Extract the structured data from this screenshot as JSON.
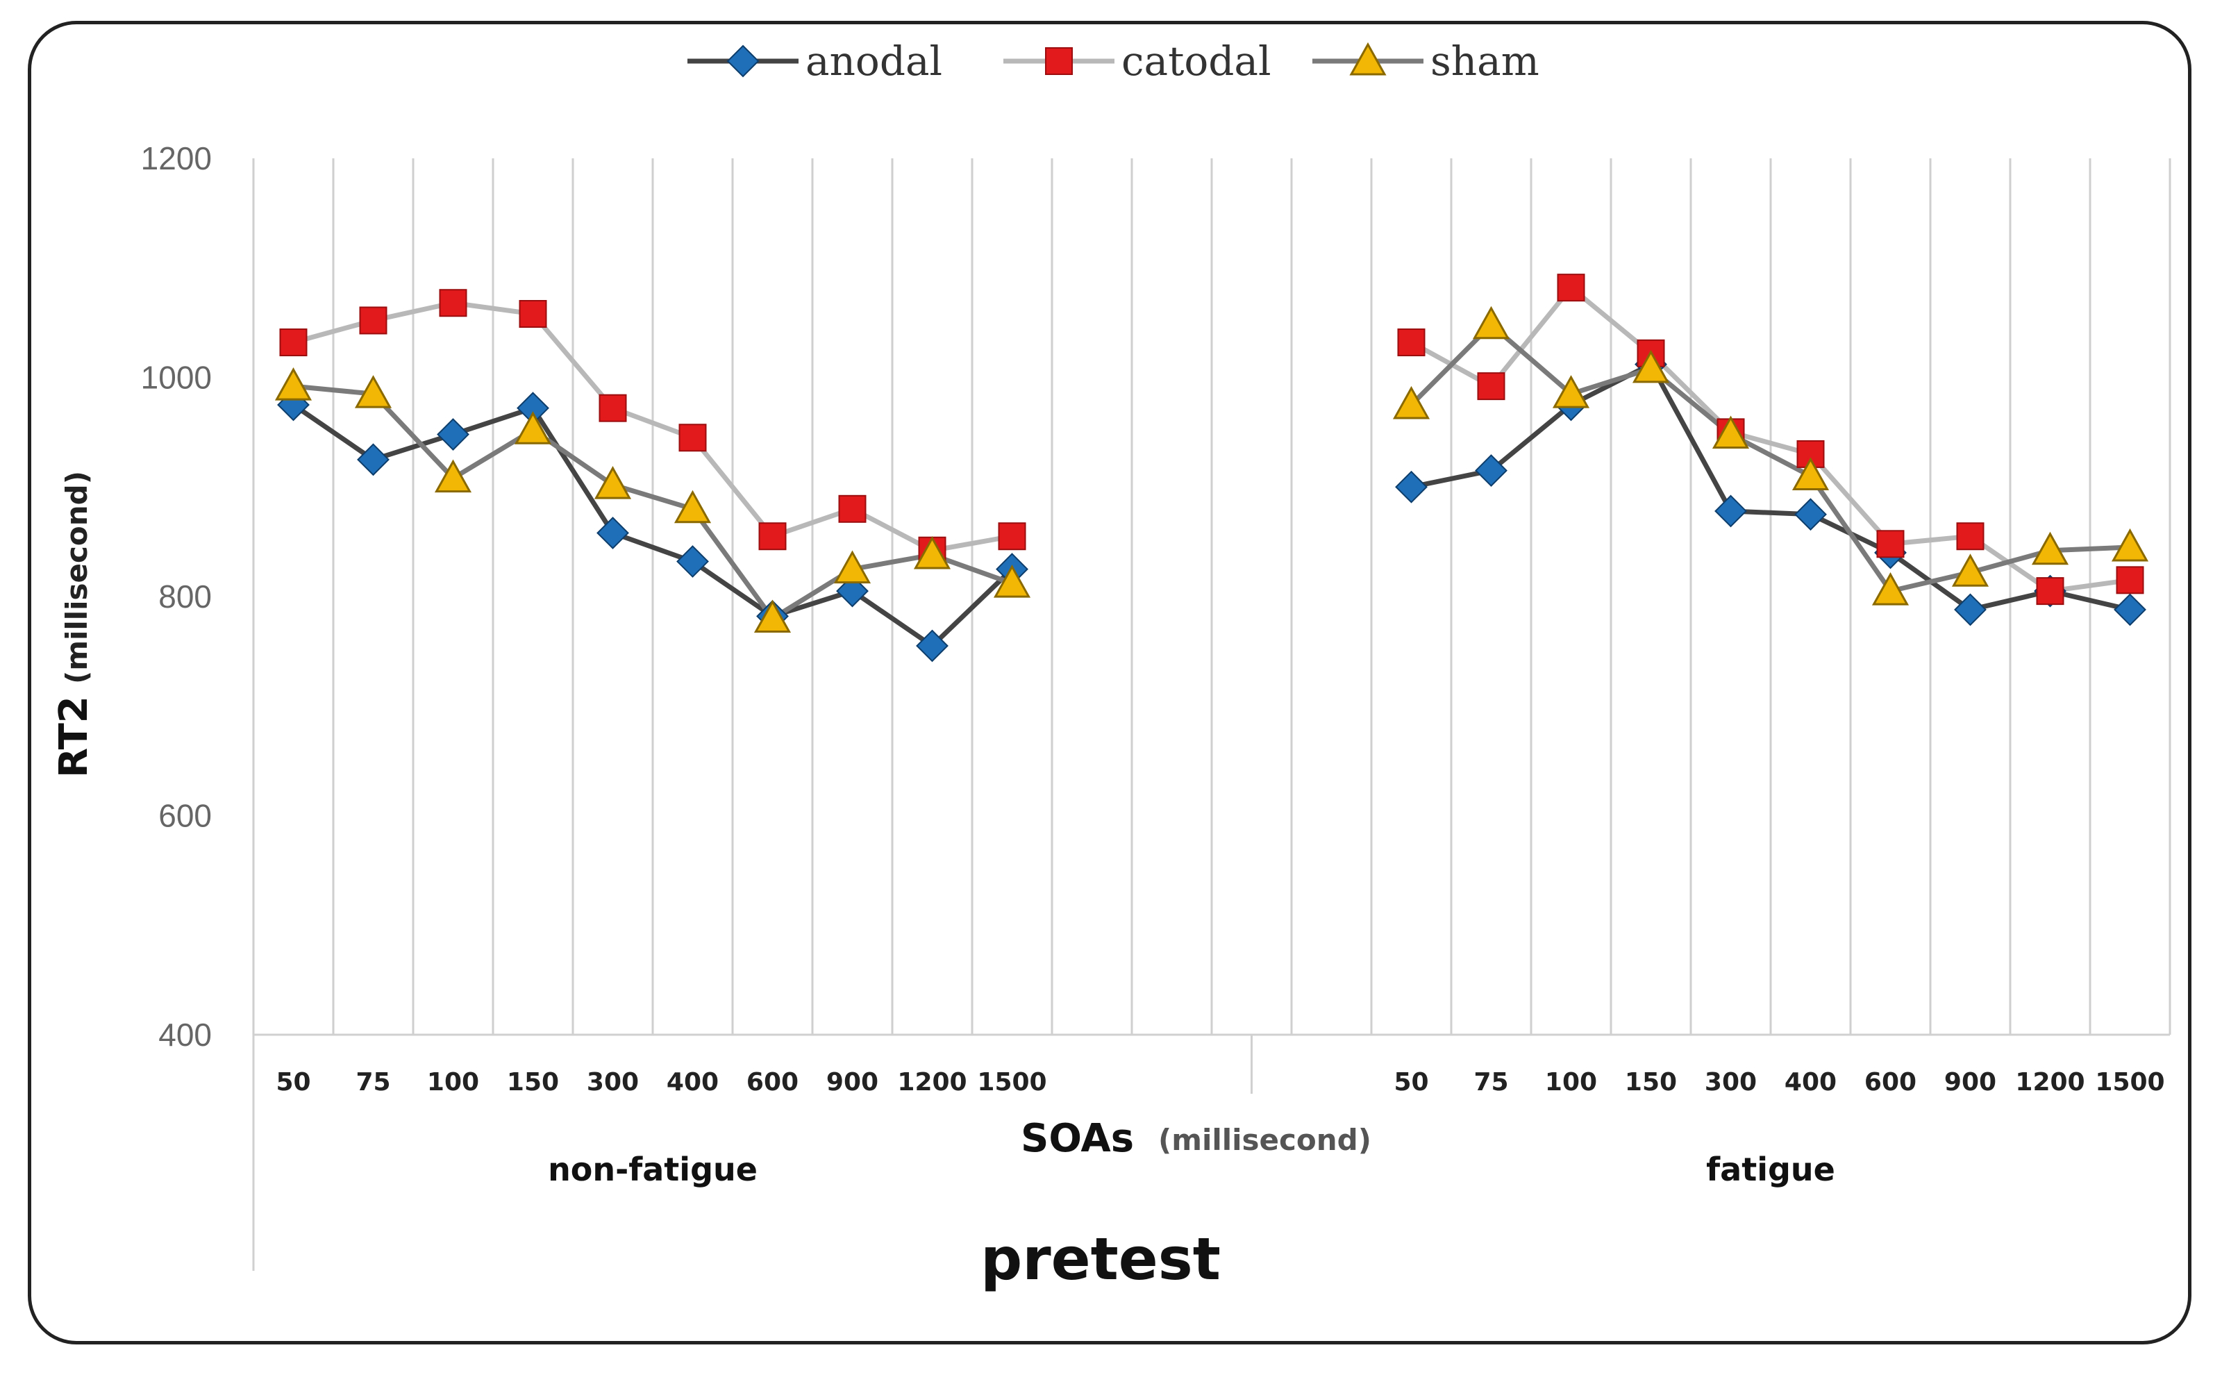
{
  "chart_data": {
    "type": "line",
    "title": "pretest",
    "ylabel": "RT2",
    "ylabel_unit": "(millisecond)",
    "xlabel": "SOAs",
    "xlabel_unit": "(millisecond)",
    "ylim": [
      400,
      1200
    ],
    "yticks": [
      400,
      600,
      800,
      1000,
      1200
    ],
    "grid": true,
    "legend_position": "top-center",
    "groups": [
      {
        "label": "non-fatigue",
        "categories": [
          "50",
          "75",
          "100",
          "150",
          "300",
          "400",
          "600",
          "900",
          "1200",
          "1500"
        ],
        "series": [
          {
            "name": "anodal",
            "values": [
              975,
              925,
              948,
              972,
              858,
              832,
              782,
              805,
              755,
              825
            ]
          },
          {
            "name": "catodal",
            "values": [
              1032,
              1052,
              1068,
              1058,
              972,
              945,
              855,
              880,
              842,
              855
            ]
          },
          {
            "name": "sham",
            "values": [
              992,
              985,
              908,
              952,
              902,
              880,
              780,
              825,
              838,
              812
            ]
          }
        ]
      },
      {
        "label": "fatigue",
        "categories": [
          "50",
          "75",
          "100",
          "150",
          "300",
          "400",
          "600",
          "900",
          "1200",
          "1500"
        ],
        "series": [
          {
            "name": "anodal",
            "values": [
              900,
              915,
              975,
              1012,
              878,
              875,
              840,
              788,
              805,
              788
            ]
          },
          {
            "name": "catodal",
            "values": [
              1032,
              992,
              1082,
              1022,
              950,
              930,
              848,
              855,
              805,
              815
            ]
          },
          {
            "name": "sham",
            "values": [
              975,
              1048,
              985,
              1008,
              948,
              910,
              805,
              822,
              842,
              845
            ]
          }
        ]
      }
    ],
    "styles": [
      {
        "name": "anodal",
        "marker": "diamond",
        "marker_color": "#1f6fb8",
        "line_color": "#444444"
      },
      {
        "name": "catodal",
        "marker": "square",
        "marker_color": "#e31a1c",
        "line_color": "#b8b8b8"
      },
      {
        "name": "sham",
        "marker": "triangle",
        "marker_color": "#f2b705",
        "line_color": "#7a7a7a"
      }
    ]
  }
}
